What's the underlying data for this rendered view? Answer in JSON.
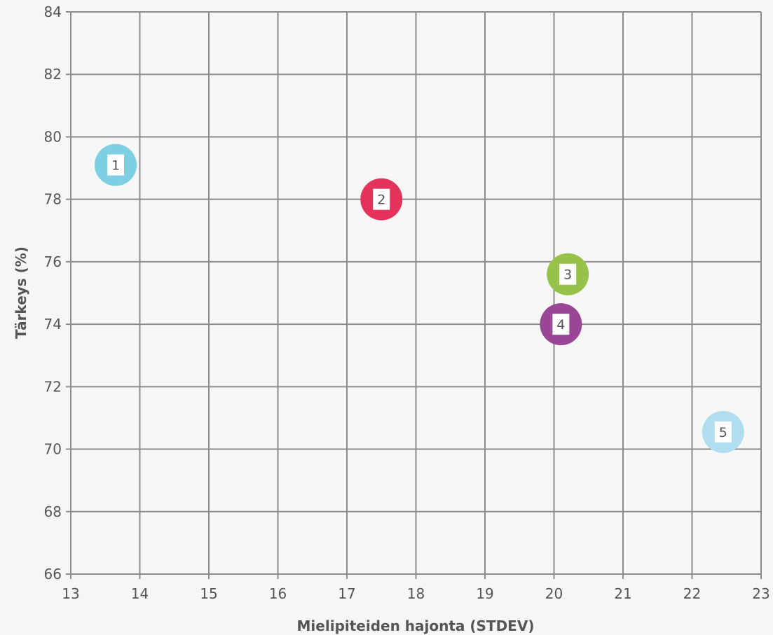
{
  "chart_data": {
    "type": "scatter",
    "xlabel": "Mielipiteiden hajonta (STDEV)",
    "ylabel": "Tärkeys (%)",
    "xlim": [
      13,
      23
    ],
    "ylim": [
      66,
      84
    ],
    "xticks": [
      13,
      14,
      15,
      16,
      17,
      18,
      19,
      20,
      21,
      22,
      23
    ],
    "yticks": [
      66,
      68,
      70,
      72,
      74,
      76,
      78,
      80,
      82,
      84
    ],
    "grid": true,
    "points": [
      {
        "label": "1",
        "x": 13.65,
        "y": 79.1,
        "color": "#7ecfe3"
      },
      {
        "label": "2",
        "x": 17.5,
        "y": 78.0,
        "color": "#e3335a"
      },
      {
        "label": "3",
        "x": 20.2,
        "y": 75.6,
        "color": "#97c24a"
      },
      {
        "label": "4",
        "x": 20.1,
        "y": 74.0,
        "color": "#9a4595"
      },
      {
        "label": "5",
        "x": 22.45,
        "y": 70.55,
        "color": "#b0deef"
      }
    ]
  },
  "colors": {
    "grid": "#8c8c8c",
    "text": "#555555",
    "background": "#f6f6f6"
  }
}
